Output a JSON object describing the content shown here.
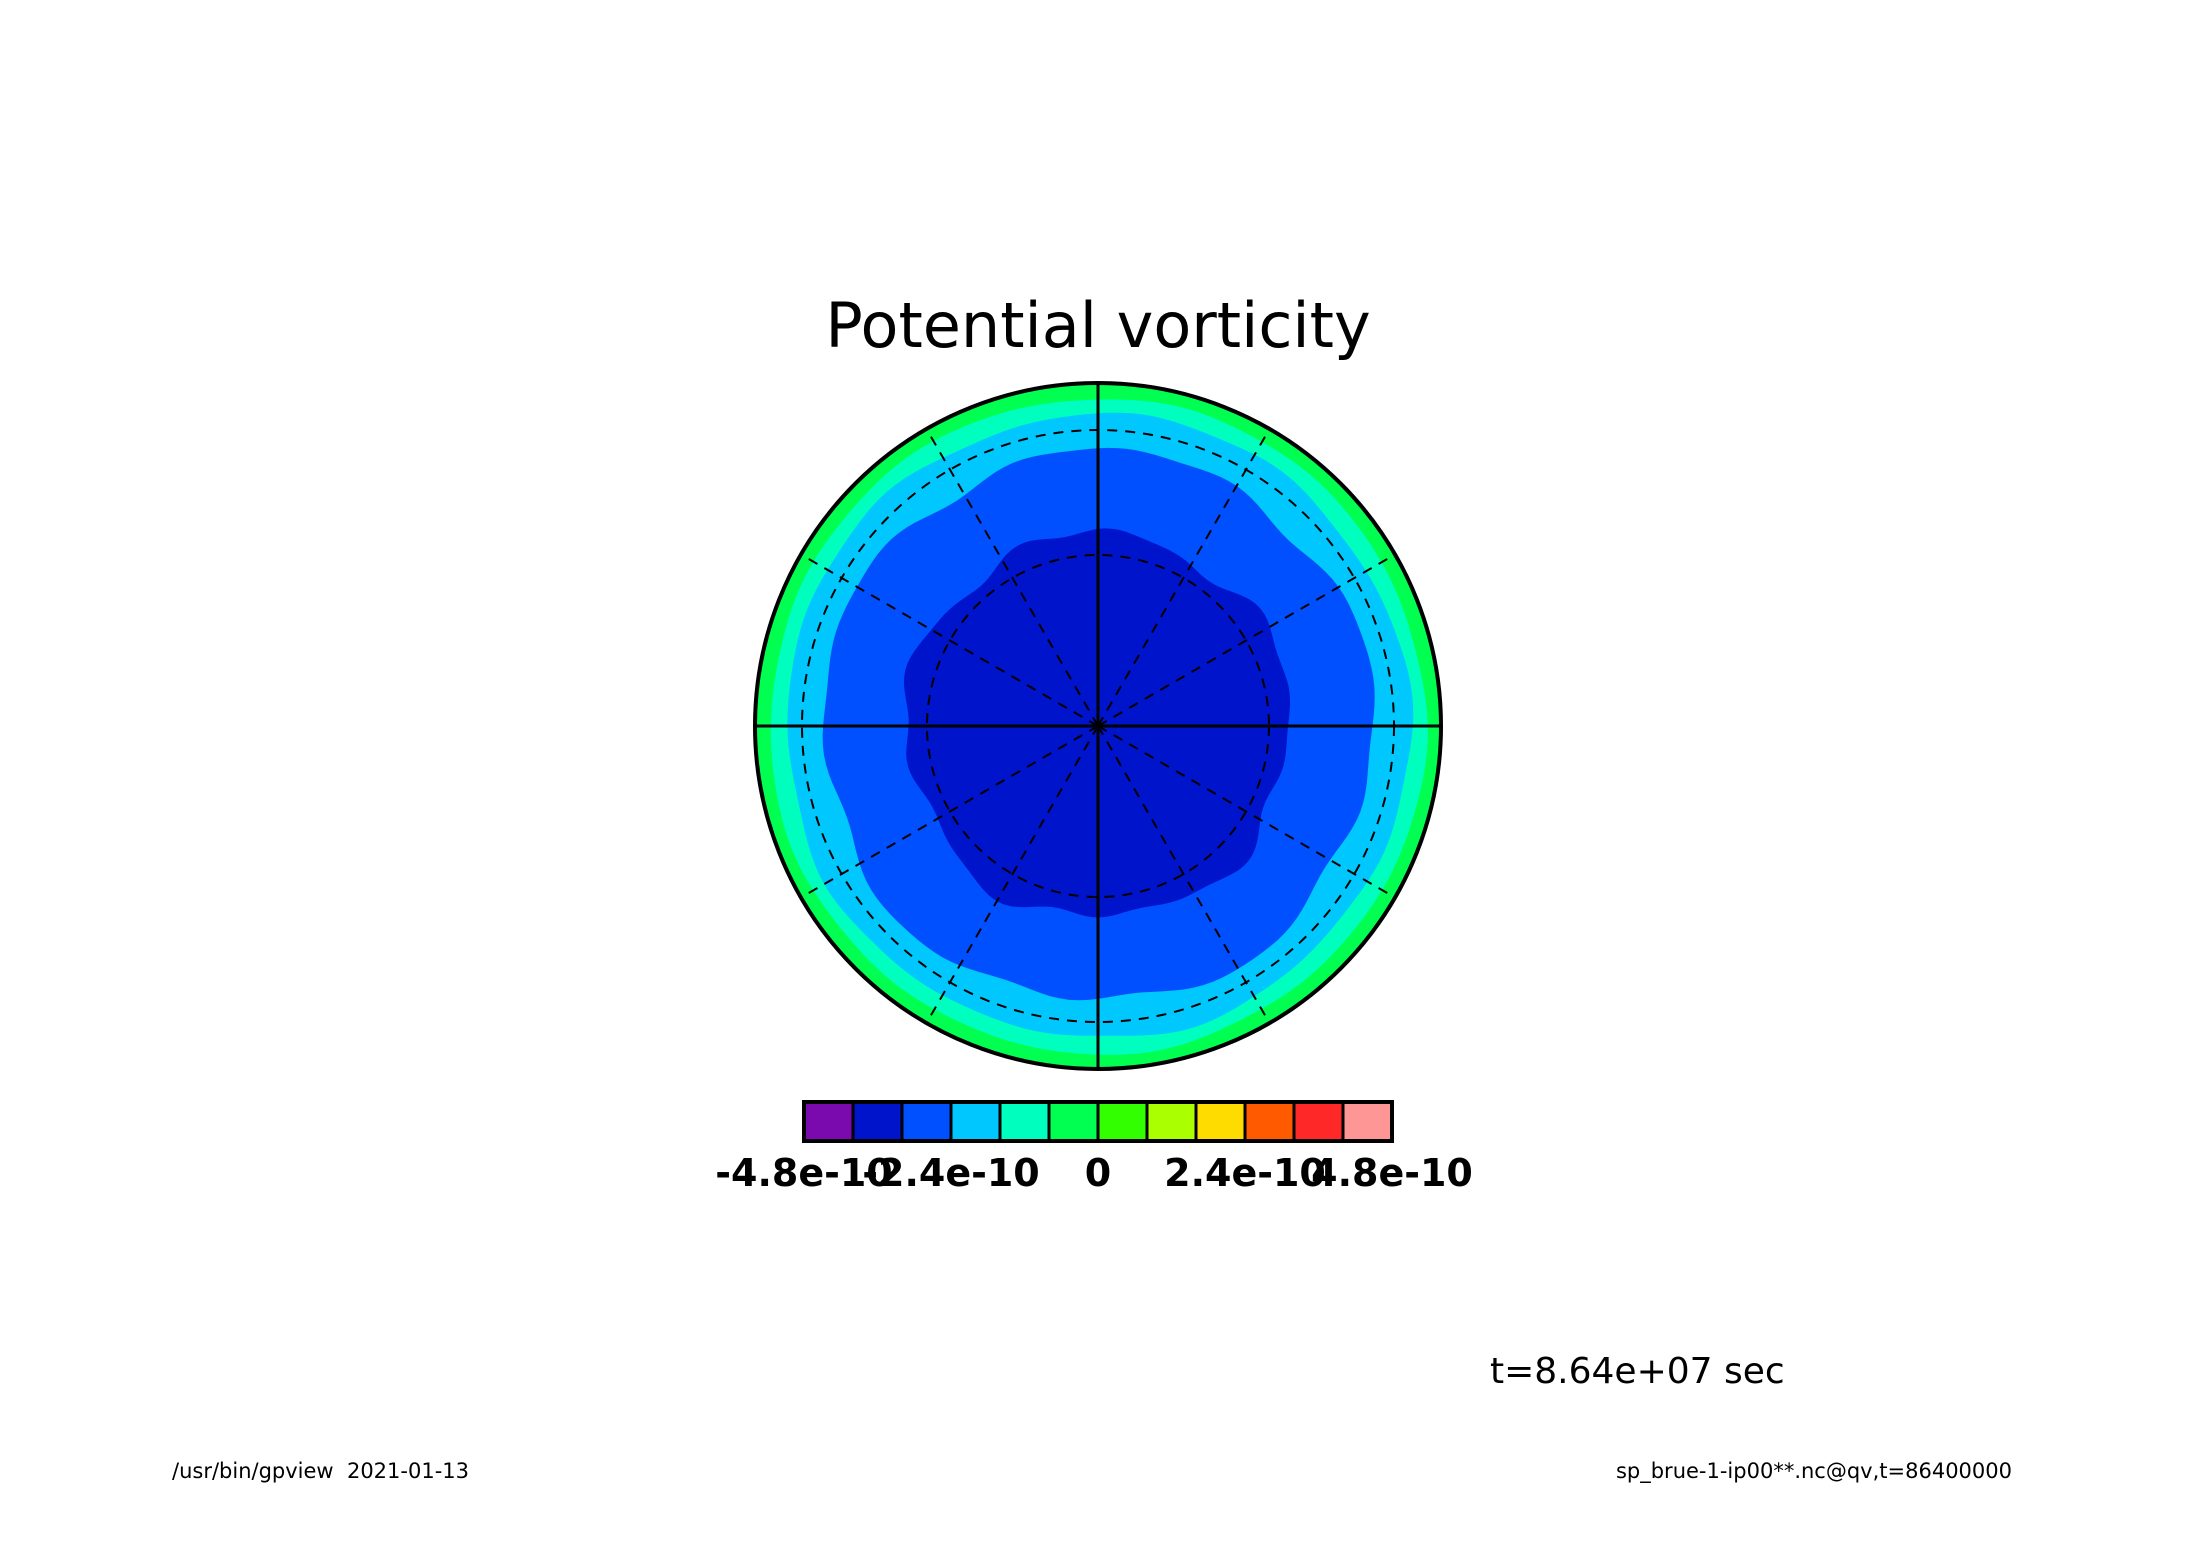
{
  "chart_data": {
    "type": "heatmap",
    "projection": "polar-stereographic",
    "title": "Potential vorticity",
    "variable": "qv",
    "colorbar": {
      "colors": [
        "#7a0aad",
        "#0014cc",
        "#0050ff",
        "#00c8ff",
        "#00ffbe",
        "#00ff50",
        "#32ff00",
        "#aaff00",
        "#ffdc00",
        "#ff5a00",
        "#ff2828",
        "#ff9696"
      ],
      "tick_labels": [
        "-4.8e-10",
        "-2.4e-10",
        "0",
        "2.4e-10",
        "4.8e-10"
      ],
      "tick_values": [
        -4.8e-10,
        -2.4e-10,
        0,
        2.4e-10,
        4.8e-10
      ],
      "level_step": 8e-11,
      "range": [
        -4.8e-10,
        4.8e-10
      ]
    },
    "contour_regions": [
      {
        "band": "-4.0e-10 to -3.2e-10",
        "color": "#0014cc",
        "extent": "center up to about 50 deg from the pole"
      },
      {
        "band": "-3.2e-10 to -2.4e-10",
        "color": "#0050ff",
        "extent": "about 50-70 deg from the pole"
      },
      {
        "band": "-2.4e-10 to -1.6e-10",
        "color": "#00c8ff",
        "extent": "about 70-80 deg from the pole"
      },
      {
        "band": "-1.6e-10 to -8e-11",
        "color": "#00ffbe",
        "extent": "about 80-90 deg from the pole"
      },
      {
        "band": "-8e-11 to 0",
        "color": "#00ff50",
        "extent": "thin rim near the boundary"
      }
    ],
    "grid": true,
    "time_label": "t=8.64e+07 sec"
  },
  "footer": {
    "left": "/usr/bin/gpview  2021-01-13",
    "right": "sp_brue-1-ip00**.nc@qv,t=86400000"
  }
}
